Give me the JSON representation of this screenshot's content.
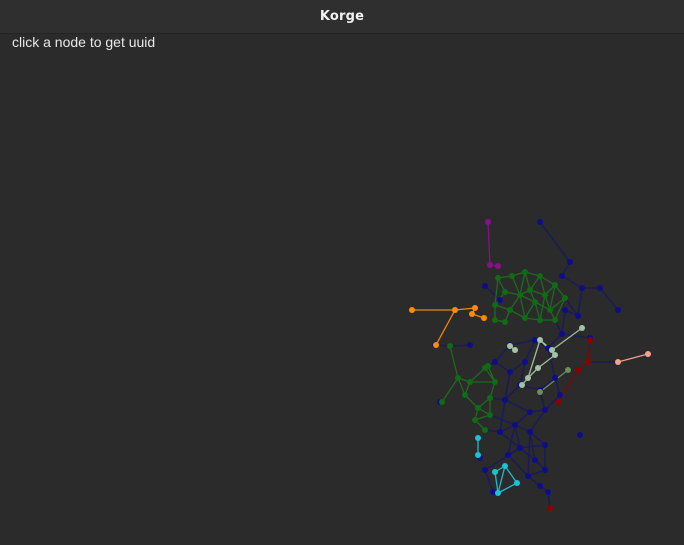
{
  "window": {
    "title": "Korge"
  },
  "hint": "click a node to get uuid",
  "graph": {
    "colors": {
      "navy": "#0d0d8a",
      "navy_edge": "#1a1a5a",
      "green": "#0f6b14",
      "green_edge": "#1e6e1e",
      "purple": "#8b0f8b",
      "orange": "#ff8c00",
      "sage": "#a4c3a4",
      "olive": "#6b8e5a",
      "darkred": "#8b0000",
      "salmon": "#f5a18f",
      "cyan": "#19c3d6"
    }
  }
}
